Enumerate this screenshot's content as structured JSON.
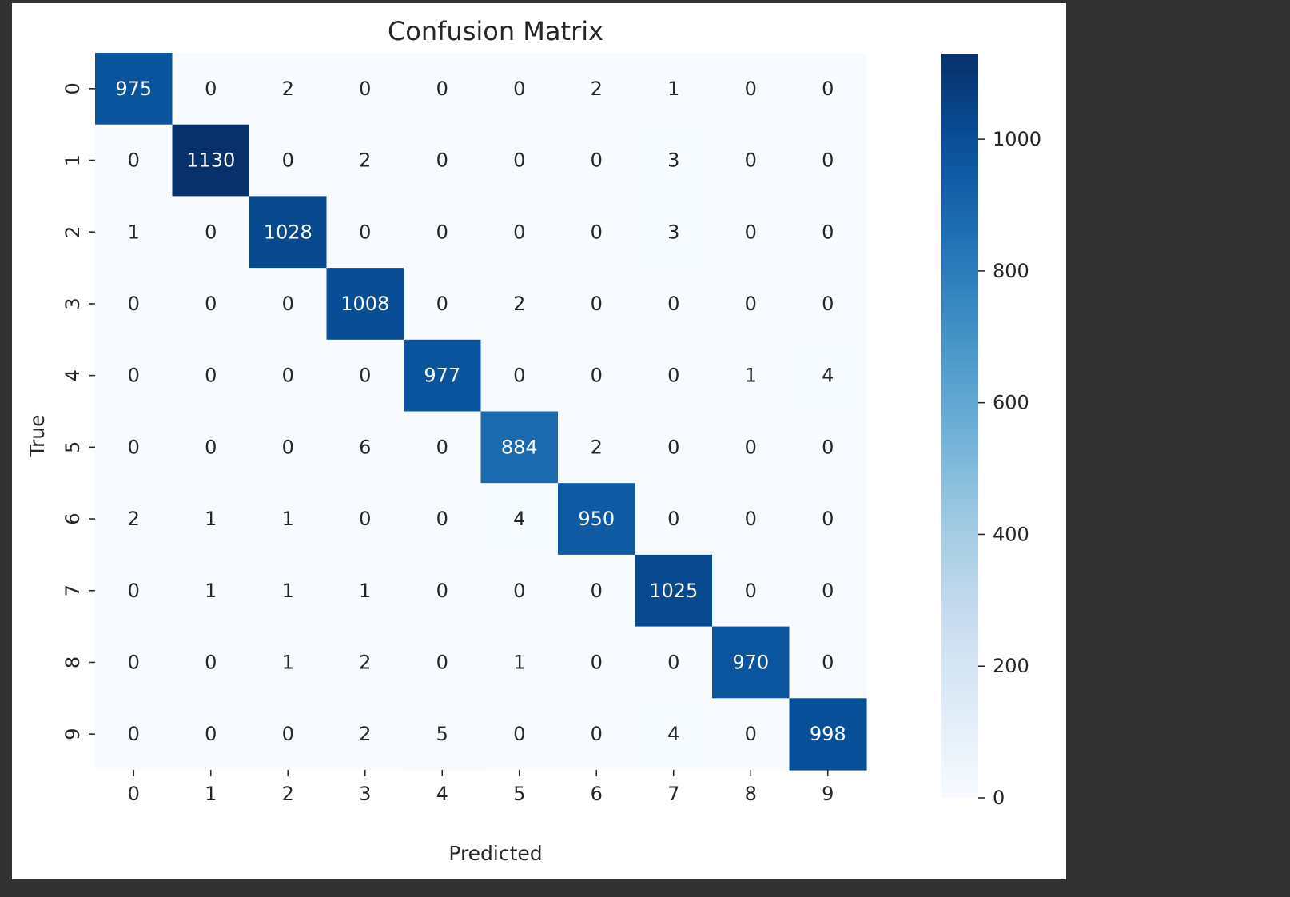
{
  "chart_data": {
    "type": "heatmap",
    "title": "Confusion Matrix",
    "xlabel": "Predicted",
    "ylabel": "True",
    "x_categories": [
      "0",
      "1",
      "2",
      "3",
      "4",
      "5",
      "6",
      "7",
      "8",
      "9"
    ],
    "y_categories": [
      "0",
      "1",
      "2",
      "3",
      "4",
      "5",
      "6",
      "7",
      "8",
      "9"
    ],
    "values": [
      [
        975,
        0,
        2,
        0,
        0,
        0,
        2,
        1,
        0,
        0
      ],
      [
        0,
        1130,
        0,
        2,
        0,
        0,
        0,
        3,
        0,
        0
      ],
      [
        1,
        0,
        1028,
        0,
        0,
        0,
        0,
        3,
        0,
        0
      ],
      [
        0,
        0,
        0,
        1008,
        0,
        2,
        0,
        0,
        0,
        0
      ],
      [
        0,
        0,
        0,
        0,
        977,
        0,
        0,
        0,
        1,
        4
      ],
      [
        0,
        0,
        0,
        6,
        0,
        884,
        2,
        0,
        0,
        0
      ],
      [
        2,
        1,
        1,
        0,
        0,
        4,
        950,
        0,
        0,
        0
      ],
      [
        0,
        1,
        1,
        1,
        0,
        0,
        0,
        1025,
        0,
        0
      ],
      [
        0,
        0,
        1,
        2,
        0,
        1,
        0,
        0,
        970,
        0
      ],
      [
        0,
        0,
        0,
        2,
        5,
        0,
        0,
        4,
        0,
        998
      ]
    ],
    "colormap": "Blues",
    "colorbar": {
      "min": 0,
      "max": 1130,
      "ticks": [
        0,
        200,
        400,
        600,
        800,
        1000
      ],
      "tick_labels": [
        "0",
        "200",
        "400",
        "600",
        "800",
        "1000"
      ]
    },
    "colors": {
      "low": "#f7fbff",
      "high": "#08306b",
      "page_background": "#323232",
      "figure_background": "#ffffff",
      "text_dark": "#262626",
      "text_light": "#ffffff"
    },
    "grid": false,
    "legend": "colorbar-right"
  }
}
